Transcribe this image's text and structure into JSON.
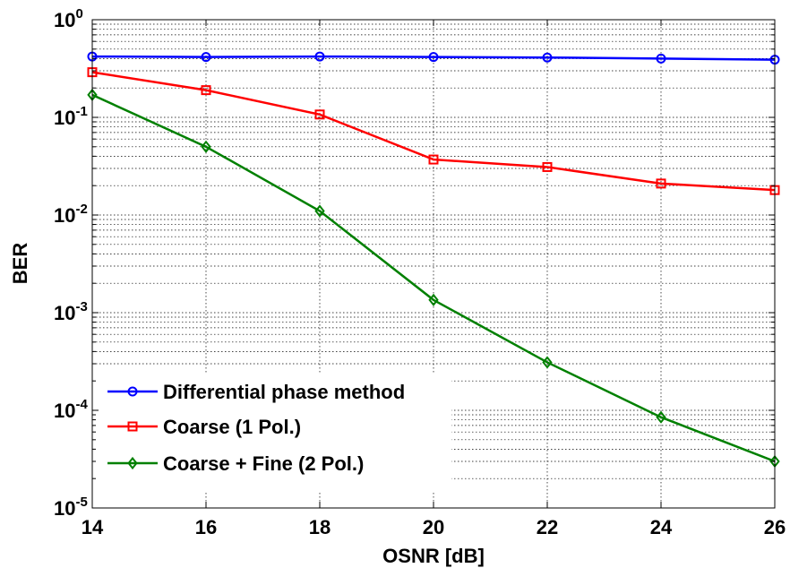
{
  "chart_data": {
    "type": "line",
    "xlabel": "OSNR [dB]",
    "ylabel": "BER",
    "x_scale": "linear",
    "y_scale": "log",
    "xlim": [
      14,
      26
    ],
    "ylim": [
      1e-05,
      1
    ],
    "x_ticks": [
      14,
      16,
      18,
      20,
      22,
      24,
      26
    ],
    "x_tick_labels": [
      "14",
      "16",
      "18",
      "20",
      "22",
      "24",
      "26"
    ],
    "y_tick_labels": [
      {
        "base": "10",
        "exp": "0"
      },
      {
        "base": "10",
        "exp": "-1"
      },
      {
        "base": "10",
        "exp": "-2"
      },
      {
        "base": "10",
        "exp": "-3"
      },
      {
        "base": "10",
        "exp": "-4"
      },
      {
        "base": "10",
        "exp": "-5"
      }
    ],
    "grid": true,
    "legend_position": "bottom-left",
    "x": [
      14,
      16,
      18,
      20,
      22,
      24,
      26
    ],
    "series": [
      {
        "name": "Differential phase method",
        "color": "#0000ff",
        "marker": "circle",
        "values": [
          0.42,
          0.415,
          0.42,
          0.415,
          0.41,
          0.4,
          0.39
        ]
      },
      {
        "name": "Coarse (1 Pol.)",
        "color": "#ff0000",
        "marker": "square",
        "values": [
          0.29,
          0.19,
          0.107,
          0.037,
          0.031,
          0.021,
          0.018
        ]
      },
      {
        "name": "Coarse + Fine (2 Pol.)",
        "color": "#008000",
        "marker": "diamond",
        "values": [
          0.17,
          0.05,
          0.011,
          0.00135,
          0.00031,
          8.5e-05,
          3e-05
        ]
      }
    ]
  }
}
